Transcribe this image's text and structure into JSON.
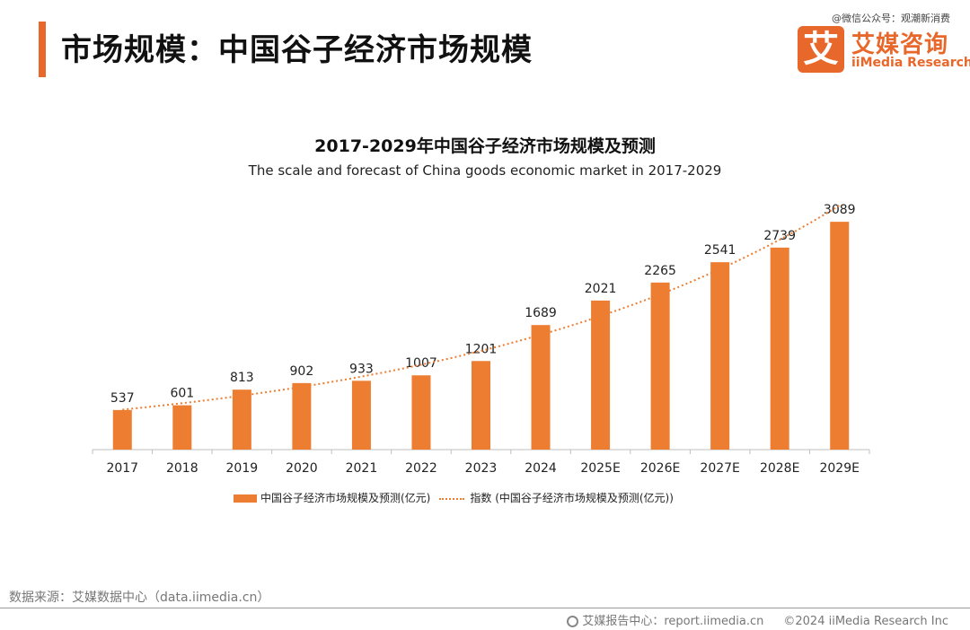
{
  "header": {
    "title": "市场规模：中国谷子经济市场规模",
    "watermark": "@微信公众号：观潮新消费"
  },
  "logo": {
    "mark": "艾",
    "cn": "艾媒咨询",
    "en": "iiMedia Research"
  },
  "chart_data": {
    "type": "bar",
    "title": "2017-2029年中国谷子经济市场规模及预测",
    "subtitle": "The scale and forecast of China goods economic market in 2017-2029",
    "categories": [
      "2017",
      "2018",
      "2019",
      "2020",
      "2021",
      "2022",
      "2023",
      "2024",
      "2025E",
      "2026E",
      "2027E",
      "2028E",
      "2029E"
    ],
    "series": [
      {
        "name": "中国谷子经济市场规模及预测(亿元)",
        "values": [
          537,
          601,
          813,
          902,
          933,
          1007,
          1201,
          1689,
          2021,
          2265,
          2541,
          2739,
          3089
        ],
        "color": "#ed7d31"
      }
    ],
    "trendline": {
      "name": "指数 (中国谷子经济市场规模及预测(亿元))",
      "style": "dotted",
      "color": "#ed7d31"
    },
    "ylim": [
      0,
      3200
    ],
    "grid": false,
    "legend": "bottom"
  },
  "footer": {
    "source": "数据来源：艾媒数据中心（data.iimedia.cn）",
    "report_center": "艾媒报告中心：report.iimedia.cn",
    "copyright": "©2024  iiMedia Research Inc"
  }
}
